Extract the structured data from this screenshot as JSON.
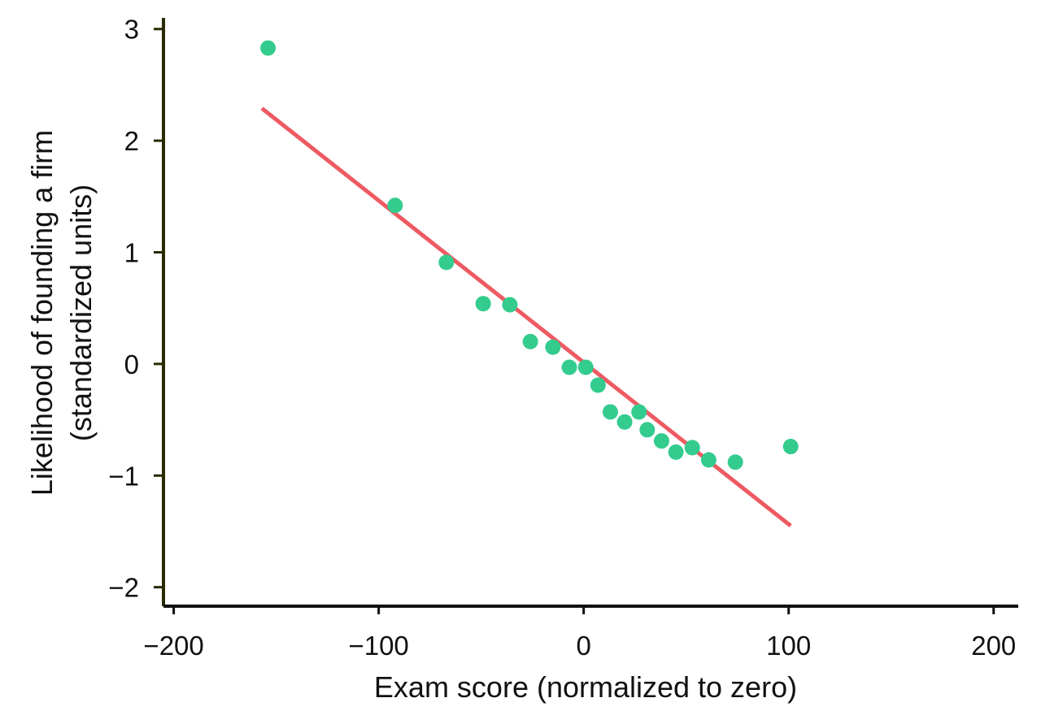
{
  "chart_data": {
    "type": "scatter",
    "title": "",
    "xlabel": "Exam score (normalized to zero)",
    "ylabel_lines": [
      "Likelihood of founding a firm",
      "(standardized units)"
    ],
    "xlim": [
      -205,
      212
    ],
    "ylim": [
      -2.17,
      3.1
    ],
    "x_ticks": [
      -200,
      -100,
      0,
      100,
      200
    ],
    "x_tick_labels": [
      "−200",
      "−100",
      "0",
      "100",
      "200"
    ],
    "y_ticks": [
      3,
      2,
      1,
      0,
      -1,
      -2
    ],
    "y_tick_labels": [
      "3",
      "2",
      "1",
      "0",
      "−1",
      "−2"
    ],
    "grid": false,
    "points": [
      {
        "x": -154,
        "y": 2.83
      },
      {
        "x": -92,
        "y": 1.42
      },
      {
        "x": -67,
        "y": 0.91
      },
      {
        "x": -49,
        "y": 0.54
      },
      {
        "x": -36,
        "y": 0.53
      },
      {
        "x": -26,
        "y": 0.2
      },
      {
        "x": -15,
        "y": 0.15
      },
      {
        "x": -7,
        "y": -0.03
      },
      {
        "x": 1,
        "y": -0.03
      },
      {
        "x": 7,
        "y": -0.19
      },
      {
        "x": 13,
        "y": -0.43
      },
      {
        "x": 20,
        "y": -0.52
      },
      {
        "x": 27,
        "y": -0.43
      },
      {
        "x": 31,
        "y": -0.59
      },
      {
        "x": 38,
        "y": -0.69
      },
      {
        "x": 45,
        "y": -0.79
      },
      {
        "x": 53,
        "y": -0.75
      },
      {
        "x": 61,
        "y": -0.86
      },
      {
        "x": 74,
        "y": -0.88
      },
      {
        "x": 101,
        "y": -0.74
      }
    ],
    "fit_line": {
      "x": [
        -157,
        101
      ],
      "y": [
        2.29,
        -1.45
      ]
    },
    "colors": {
      "points": "#33cc8e",
      "fit_line": "#ee5a62",
      "y_axis": "#2a2a00",
      "x_axis": "#111111",
      "text": "#111111"
    }
  }
}
